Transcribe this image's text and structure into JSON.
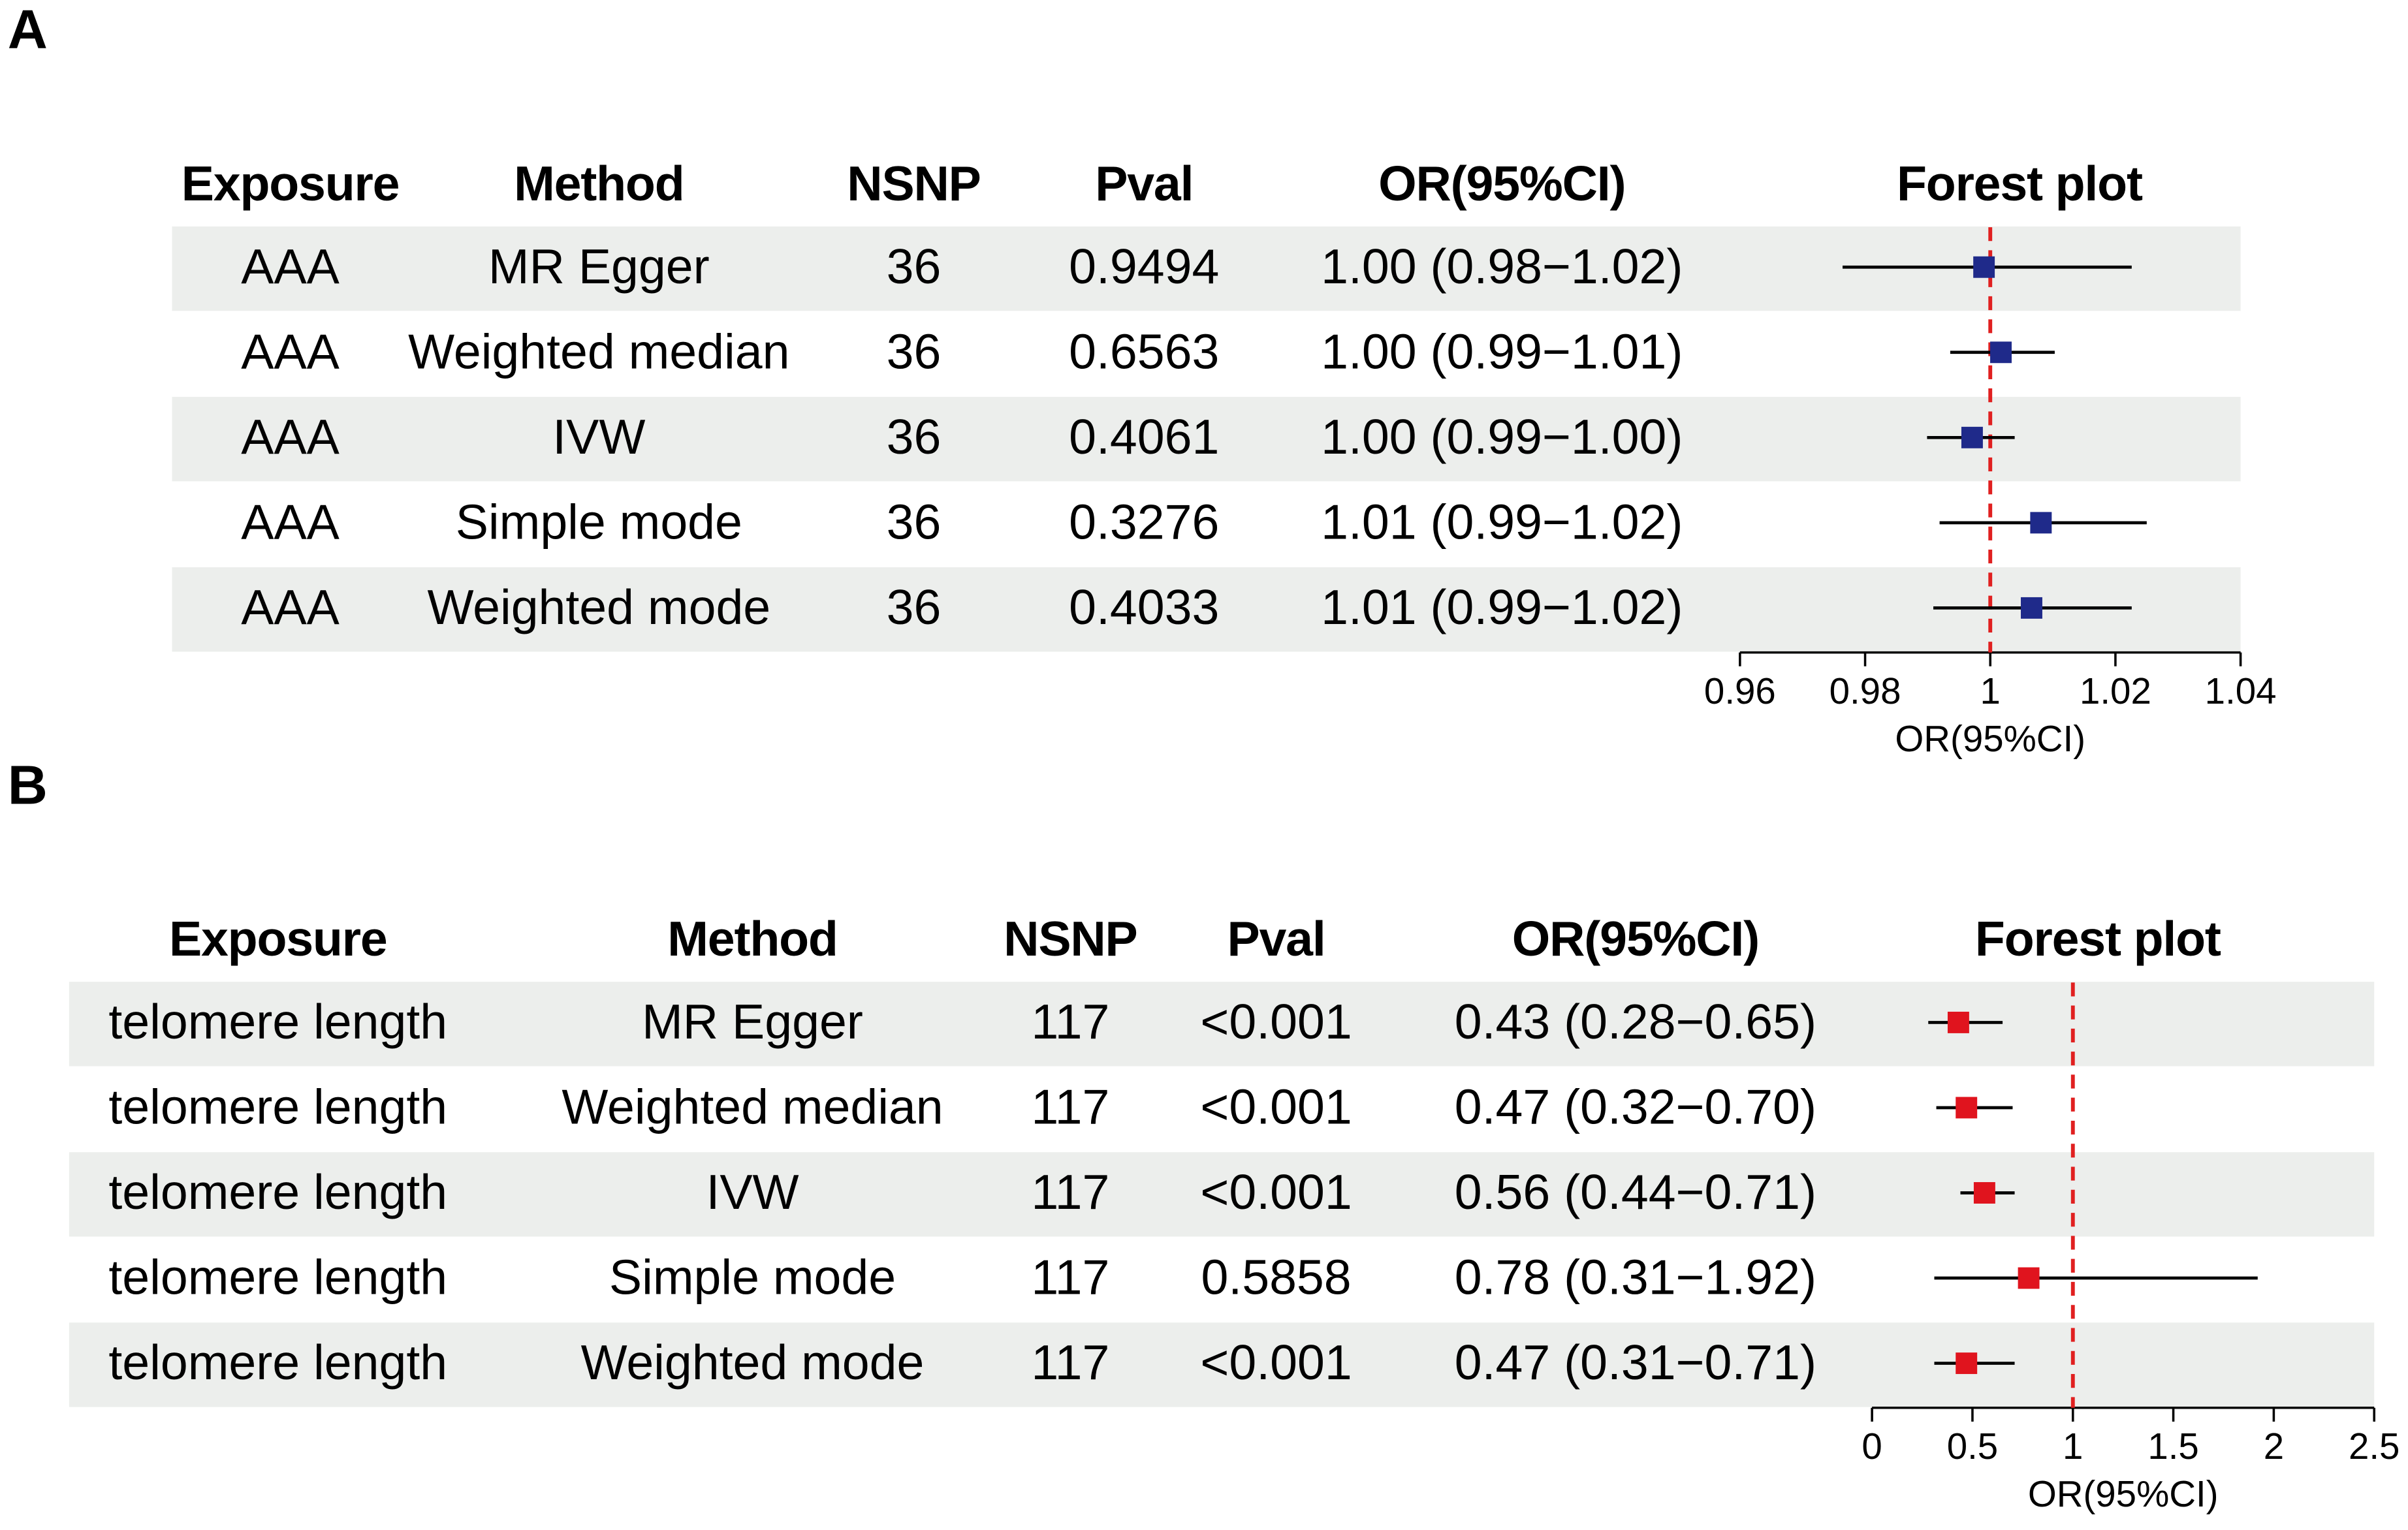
{
  "chart_data": [
    {
      "type": "forest",
      "panel": "A",
      "columns": [
        "Exposure",
        "Method",
        "NSNP",
        "Pval",
        "OR(95%CI)"
      ],
      "plot_title": "Forest plot",
      "rows": [
        [
          "AAA",
          "MR Egger",
          "36",
          "0.9494",
          "1.00 (0.98−1.02)"
        ],
        [
          "AAA",
          "Weighted median",
          "36",
          "0.6563",
          "1.00 (0.99−1.01)"
        ],
        [
          "AAA",
          "IVW",
          "36",
          "0.4061",
          "1.00 (0.99−1.00)"
        ],
        [
          "AAA",
          "Simple mode",
          "36",
          "0.3276",
          "1.01 (0.99−1.02)"
        ],
        [
          "AAA",
          "Weighted mode",
          "36",
          "0.4033",
          "1.01 (0.99−1.02)"
        ]
      ],
      "values": [
        0.999,
        1.0017,
        0.9971,
        1.0081,
        1.0066
      ],
      "lower": [
        0.9764,
        0.9936,
        0.9899,
        0.9919,
        0.9909
      ],
      "upper": [
        1.0226,
        1.0103,
        1.0039,
        1.025,
        1.0226
      ],
      "color": "#1f2a8a",
      "reference": 1,
      "reference_color": "#e02020",
      "xlim": [
        0.96,
        1.04
      ],
      "xticks": [
        0.96,
        0.98,
        1,
        1.02,
        1.04
      ],
      "xlabel": "OR(95%CI)"
    },
    {
      "type": "forest",
      "panel": "B",
      "columns": [
        "Exposure",
        "Method",
        "NSNP",
        "Pval",
        "OR(95%CI)"
      ],
      "plot_title": "Forest plot",
      "rows": [
        [
          "telomere length",
          "MR Egger",
          "117",
          "<0.001",
          "0.43 (0.28−0.65)"
        ],
        [
          "telomere length",
          "Weighted median",
          "117",
          "<0.001",
          "0.47 (0.32−0.70)"
        ],
        [
          "telomere length",
          "IVW",
          "117",
          "<0.001",
          "0.56 (0.44−0.71)"
        ],
        [
          "telomere length",
          "Simple mode",
          "117",
          "0.5858",
          "0.78 (0.31−1.92)"
        ],
        [
          "telomere length",
          "Weighted mode",
          "117",
          "<0.001",
          "0.47 (0.31−0.71)"
        ]
      ],
      "values": [
        0.43,
        0.47,
        0.56,
        0.78,
        0.47
      ],
      "lower": [
        0.28,
        0.32,
        0.44,
        0.31,
        0.31
      ],
      "upper": [
        0.65,
        0.7,
        0.71,
        1.92,
        0.71
      ],
      "color": "#e0141e",
      "reference": 1,
      "reference_color": "#e02020",
      "xlim": [
        0,
        2.5
      ],
      "xticks": [
        0,
        0.5,
        1,
        1.5,
        2,
        2.5
      ],
      "xlabel": "OR(95%CI)"
    }
  ]
}
